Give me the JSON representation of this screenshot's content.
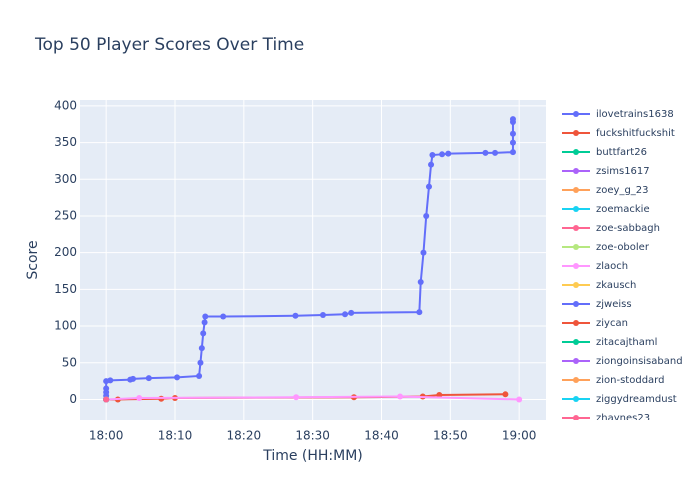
{
  "chart_data": {
    "type": "line",
    "title": "Top 50 Player Scores Over Time",
    "x_label": "Time (HH:MM)",
    "y_label": "Score",
    "xlim": [
      -3.8,
      63.9
    ],
    "ylim": [
      -28,
      408
    ],
    "xticks": [
      {
        "value": 0,
        "label": "18:00"
      },
      {
        "value": 10,
        "label": "18:10"
      },
      {
        "value": 20,
        "label": "18:20"
      },
      {
        "value": 30,
        "label": "18:30"
      },
      {
        "value": 40,
        "label": "18:40"
      },
      {
        "value": 50,
        "label": "18:50"
      },
      {
        "value": 60,
        "label": "19:00"
      }
    ],
    "yticks": [
      0,
      50,
      100,
      150,
      200,
      250,
      300,
      350,
      400
    ],
    "grid": true,
    "series": [
      {
        "name": "ilovetrains1638",
        "color": "#636efa",
        "x": [
          0,
          0,
          0,
          0,
          0.6,
          3.5,
          3.9,
          6.2,
          10.3,
          13.5,
          13.7,
          13.9,
          14.1,
          14.3,
          14.4,
          17,
          27.5,
          31.5,
          34.7,
          35.6,
          45.5,
          45.7,
          46.1,
          46.5,
          46.9,
          47.2,
          47.4,
          48.8,
          49.7,
          55.1,
          56.5,
          59.1,
          59.1,
          59.1,
          59.1,
          59.1
        ],
        "values": [
          5,
          10,
          15,
          25,
          26,
          27,
          28,
          29,
          30,
          32,
          50,
          70,
          90,
          105,
          113,
          113,
          114,
          115,
          116,
          118,
          119,
          160,
          200,
          250,
          290,
          320,
          333,
          334,
          335,
          336,
          336,
          337,
          350,
          362,
          378,
          382
        ]
      },
      {
        "name": "fuckshitfuckshit",
        "color": "#EF553B",
        "x": [
          0,
          1.7,
          8,
          10,
          36,
          46,
          48.4,
          58
        ],
        "values": [
          0,
          0,
          1,
          2,
          3,
          4,
          6,
          7
        ]
      },
      {
        "name": "buttfart26",
        "color": "#00cc96",
        "x": [
          0
        ],
        "values": [
          0
        ]
      },
      {
        "name": "zsims1617",
        "color": "#ab63fa",
        "x": [
          0
        ],
        "values": [
          0
        ]
      },
      {
        "name": "zoey_g_23",
        "color": "#FFA15A",
        "x": [
          0
        ],
        "values": [
          0
        ]
      },
      {
        "name": "zoemackie",
        "color": "#19d3f3",
        "x": [
          0
        ],
        "values": [
          0
        ]
      },
      {
        "name": "zoe-sabbagh",
        "color": "#FF6692",
        "x": [
          0
        ],
        "values": [
          0
        ]
      },
      {
        "name": "zoe-oboler",
        "color": "#B6E880",
        "x": [
          0
        ],
        "values": [
          0
        ]
      },
      {
        "name": "zlaoch",
        "color": "#FF97FF",
        "x": [
          0,
          4.8,
          27.6,
          42.7,
          60
        ],
        "values": [
          0,
          2,
          3,
          4,
          0
        ]
      },
      {
        "name": "zkausch",
        "color": "#FECB52",
        "x": [
          0
        ],
        "values": [
          0
        ]
      },
      {
        "name": "zjweiss",
        "color": "#636efa",
        "x": [
          0
        ],
        "values": [
          0
        ]
      },
      {
        "name": "ziycan",
        "color": "#EF553B",
        "x": [
          0
        ],
        "values": [
          0
        ]
      },
      {
        "name": "zitacajthaml",
        "color": "#00cc96",
        "x": [
          0
        ],
        "values": [
          0
        ]
      },
      {
        "name": "ziongoinsisaband",
        "color": "#ab63fa",
        "x": [
          0
        ],
        "values": [
          0
        ]
      },
      {
        "name": "zion-stoddard",
        "color": "#FFA15A",
        "x": [
          0
        ],
        "values": [
          0
        ]
      },
      {
        "name": "ziggydreamdust",
        "color": "#19d3f3",
        "x": [
          0
        ],
        "values": [
          0
        ]
      },
      {
        "name": "zhaynes23",
        "color": "#FF6692",
        "x": [
          0
        ],
        "values": [
          0
        ]
      }
    ]
  }
}
